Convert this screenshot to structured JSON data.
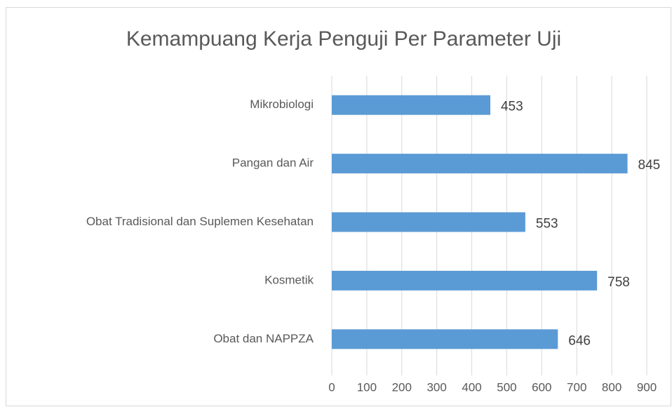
{
  "chart_data": {
    "type": "bar",
    "orientation": "horizontal",
    "title": "Kemampuang Kerja Penguji Per Parameter Uji",
    "categories": [
      "Mikrobiologi",
      "Pangan dan Air",
      "Obat Tradisional dan Suplemen Kesehatan",
      "Kosmetik",
      "Obat dan NAPPZA"
    ],
    "values": [
      453,
      845,
      553,
      758,
      646
    ],
    "color": "#5b9bd5",
    "xlim": [
      0,
      900
    ],
    "xticks": [
      0,
      100,
      200,
      300,
      400,
      500,
      600,
      700,
      800,
      900
    ],
    "grid": true
  }
}
